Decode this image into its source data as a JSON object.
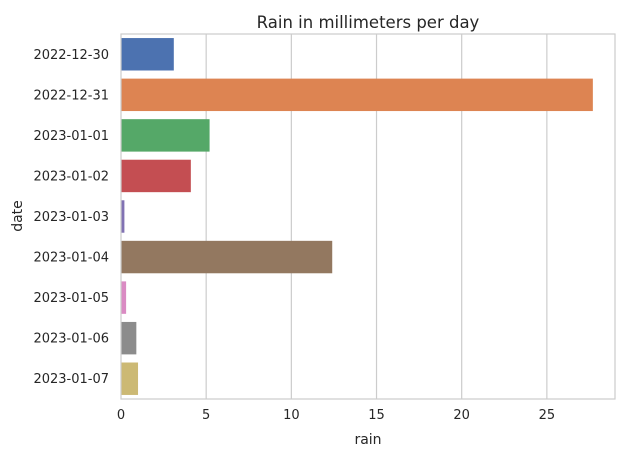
{
  "chart_data": {
    "type": "bar",
    "orientation": "horizontal",
    "title": "Rain in millimeters per day",
    "xlabel": "rain",
    "ylabel": "date",
    "categories": [
      "2022-12-30",
      "2022-12-31",
      "2023-01-01",
      "2023-01-02",
      "2023-01-03",
      "2023-01-04",
      "2023-01-05",
      "2023-01-06",
      "2023-01-07"
    ],
    "values": [
      3.1,
      27.7,
      5.2,
      4.1,
      0.2,
      12.4,
      0.3,
      0.9,
      1.0
    ],
    "colors": [
      "#4c72b0",
      "#dd8452",
      "#55a868",
      "#c44e52",
      "#8172b3",
      "#937860",
      "#da8bc3",
      "#8c8c8c",
      "#ccb974"
    ],
    "xlim": [
      0,
      29
    ],
    "xticks": [
      0,
      5,
      10,
      15,
      20,
      25
    ],
    "grid": "vertical",
    "legend": "none"
  }
}
